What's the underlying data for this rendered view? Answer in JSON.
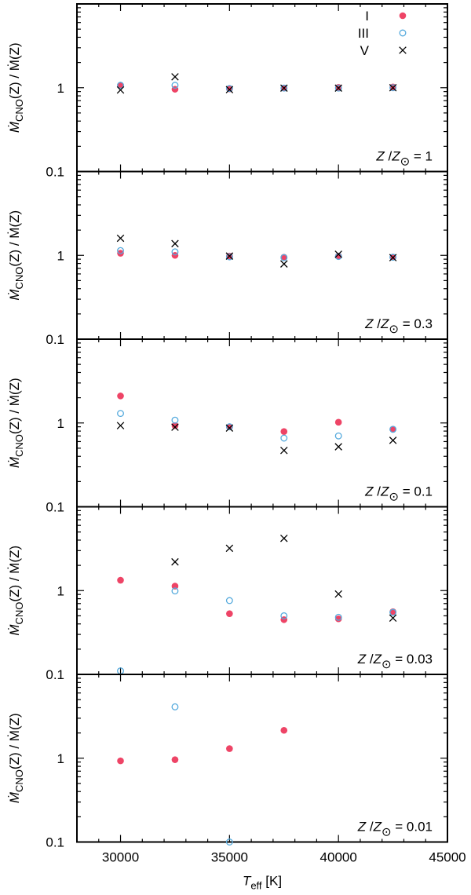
{
  "chart_data": {
    "type": "scatter",
    "xlabel": {
      "main": "T",
      "sub": "eff",
      "unit": " [K]"
    },
    "ylabel": {
      "prefix": "Ṁ",
      "sub": "CNO",
      "rest": "(Z) / Ṁ(Z)"
    },
    "xlim": [
      28000,
      45000
    ],
    "xticks": [
      "30000",
      "35000",
      "40000",
      "45000"
    ],
    "xtick_values": [
      30000,
      35000,
      40000,
      45000
    ],
    "ylim": [
      0.1,
      10
    ],
    "y_scale": "log",
    "yticks": [
      "0.1",
      "1"
    ],
    "ytick_values": [
      0.1,
      1
    ],
    "legend": {
      "placement": "top-right",
      "entries": [
        {
          "label": "I",
          "marker": "filled-circle",
          "color": "#ee4466"
        },
        {
          "label": "III",
          "marker": "open-circle",
          "color": "#55aadd"
        },
        {
          "label": "V",
          "marker": "cross",
          "color": "#000000"
        }
      ]
    },
    "panels": [
      {
        "metallicity_label": {
          "z": "Z",
          "zsun": "Z",
          "value": " = 1"
        },
        "series": [
          {
            "name": "I",
            "x": [
              30000,
              32500,
              35000,
              37500,
              40000,
              42500
            ],
            "y": [
              1.07,
              0.96,
              0.97,
              0.99,
              1.01,
              1.02
            ]
          },
          {
            "name": "III",
            "x": [
              30000,
              32500,
              35000,
              37500,
              40000,
              42500
            ],
            "y": [
              1.07,
              1.07,
              0.98,
              0.99,
              0.99,
              1.0
            ]
          },
          {
            "name": "V",
            "x": [
              30000,
              32500,
              35000,
              37500,
              40000,
              42500
            ],
            "y": [
              0.94,
              1.35,
              0.95,
              0.99,
              0.99,
              1.0
            ]
          }
        ]
      },
      {
        "metallicity_label": {
          "z": "Z",
          "zsun": "Z",
          "value": " = 0.3"
        },
        "series": [
          {
            "name": "I",
            "x": [
              30000,
              32500,
              35000,
              37500,
              40000,
              42500
            ],
            "y": [
              1.06,
              1.0,
              0.98,
              0.95,
              0.98,
              0.95
            ]
          },
          {
            "name": "III",
            "x": [
              30000,
              32500,
              35000,
              37500,
              40000,
              42500
            ],
            "y": [
              1.14,
              1.1,
              0.96,
              0.94,
              0.97,
              0.95
            ]
          },
          {
            "name": "V",
            "x": [
              30000,
              32500,
              35000,
              37500,
              40000,
              42500
            ],
            "y": [
              1.6,
              1.38,
              0.98,
              0.79,
              1.03,
              0.94
            ]
          }
        ]
      },
      {
        "metallicity_label": {
          "z": "Z",
          "zsun": "Z",
          "value": " = 0.1"
        },
        "series": [
          {
            "name": "I",
            "x": [
              30000,
              32500,
              35000,
              37500,
              40000,
              42500
            ],
            "y": [
              2.1,
              0.93,
              0.9,
              0.79,
              1.02,
              0.84
            ]
          },
          {
            "name": "III",
            "x": [
              30000,
              32500,
              35000,
              37500,
              40000,
              42500
            ],
            "y": [
              1.3,
              1.08,
              0.9,
              0.66,
              0.7,
              0.84
            ]
          },
          {
            "name": "V",
            "x": [
              30000,
              32500,
              35000,
              37500,
              40000,
              42500
            ],
            "y": [
              0.93,
              0.89,
              0.87,
              0.47,
              0.52,
              0.62
            ]
          }
        ]
      },
      {
        "metallicity_label": {
          "z": "Z",
          "zsun": "Z",
          "value": " = 0.03"
        },
        "series": [
          {
            "name": "I",
            "x": [
              30000,
              32500,
              35000,
              37500,
              40000,
              42500
            ],
            "y": [
              1.33,
              1.13,
              0.53,
              0.45,
              0.46,
              0.56
            ]
          },
          {
            "name": "III",
            "x": [
              30000,
              32500,
              35000,
              37500,
              40000,
              42500
            ],
            "y": [
              0.11,
              0.99,
              0.76,
              0.5,
              0.48,
              0.55
            ]
          },
          {
            "name": "V",
            "x": [
              32500,
              35000,
              37500,
              40000,
              42500
            ],
            "y": [
              2.2,
              3.2,
              4.2,
              0.91,
              0.47
            ]
          }
        ]
      },
      {
        "metallicity_label": {
          "z": "Z",
          "zsun": "Z",
          "value": " = 0.01"
        },
        "series": [
          {
            "name": "I",
            "x": [
              30000,
              32500,
              35000,
              37500
            ],
            "y": [
              0.93,
              0.96,
              1.3,
              2.15
            ]
          },
          {
            "name": "III",
            "x": [
              32500,
              35000
            ],
            "y": [
              4.1,
              0.1
            ]
          },
          {
            "name": "V",
            "x": [],
            "y": []
          }
        ]
      }
    ]
  }
}
